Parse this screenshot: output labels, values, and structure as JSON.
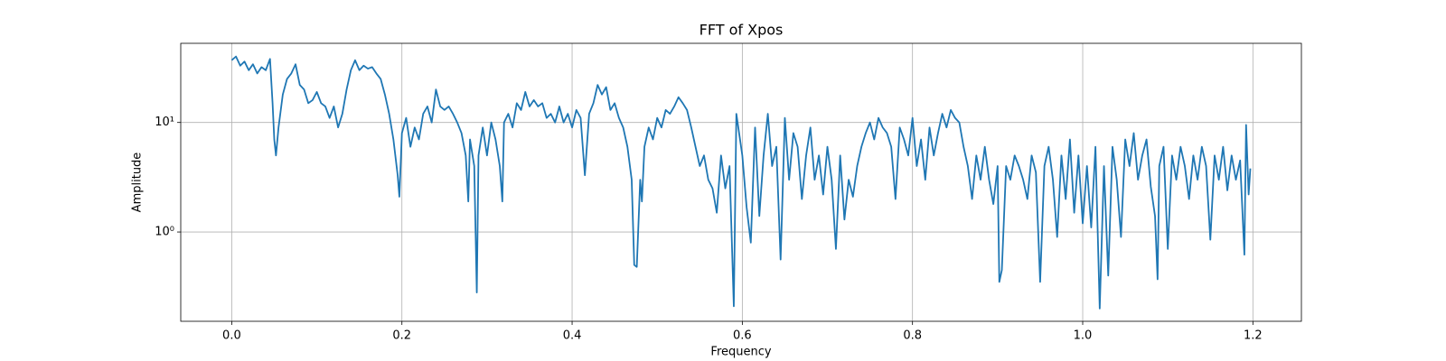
{
  "chart_data": {
    "type": "line",
    "title": "FFT of Xpos",
    "x_label": "Frequency",
    "y_label": "Amplitude",
    "color": "#1f77b4",
    "log_y": true,
    "grid": true,
    "xlim": [
      -0.0599,
      1.257
    ],
    "ylim": [
      0.153,
      52.8
    ],
    "xticks": [
      {
        "value": 0,
        "label": "0.0"
      },
      0.2,
      0.4,
      0.6,
      0.8,
      {
        "value": 1,
        "label": "1.0"
      },
      1.2
    ],
    "yticks": [
      {
        "value": 1,
        "label": "10⁰"
      },
      {
        "value": 10,
        "label": "10¹"
      }
    ],
    "x": [
      0,
      0.005,
      0.01,
      0.015,
      0.02,
      0.025,
      0.03,
      0.035,
      0.04,
      0.045,
      0.048,
      0.05,
      0.052,
      0.055,
      0.06,
      0.065,
      0.07,
      0.075,
      0.08,
      0.085,
      0.09,
      0.095,
      0.1,
      0.105,
      0.11,
      0.115,
      0.12,
      0.125,
      0.13,
      0.135,
      0.14,
      0.145,
      0.15,
      0.155,
      0.16,
      0.165,
      0.17,
      0.175,
      0.18,
      0.185,
      0.19,
      0.195,
      0.197,
      0.2,
      0.205,
      0.21,
      0.215,
      0.22,
      0.225,
      0.23,
      0.235,
      0.24,
      0.245,
      0.25,
      0.255,
      0.26,
      0.265,
      0.27,
      0.275,
      0.278,
      0.28,
      0.285,
      0.288,
      0.29,
      0.295,
      0.3,
      0.305,
      0.31,
      0.315,
      0.318,
      0.32,
      0.325,
      0.33,
      0.335,
      0.34,
      0.345,
      0.35,
      0.355,
      0.36,
      0.365,
      0.37,
      0.375,
      0.38,
      0.385,
      0.39,
      0.395,
      0.4,
      0.405,
      0.41,
      0.415,
      0.42,
      0.425,
      0.43,
      0.435,
      0.44,
      0.445,
      0.45,
      0.455,
      0.46,
      0.465,
      0.47,
      0.473,
      0.476,
      0.48,
      0.482,
      0.485,
      0.49,
      0.495,
      0.5,
      0.505,
      0.51,
      0.515,
      0.52,
      0.525,
      0.53,
      0.535,
      0.54,
      0.545,
      0.55,
      0.555,
      0.56,
      0.565,
      0.57,
      0.575,
      0.58,
      0.585,
      0.59,
      0.593,
      0.6,
      0.605,
      0.61,
      0.615,
      0.62,
      0.625,
      0.63,
      0.635,
      0.64,
      0.645,
      0.65,
      0.655,
      0.66,
      0.665,
      0.67,
      0.675,
      0.68,
      0.685,
      0.69,
      0.695,
      0.7,
      0.705,
      0.71,
      0.715,
      0.72,
      0.725,
      0.73,
      0.735,
      0.74,
      0.745,
      0.75,
      0.755,
      0.76,
      0.765,
      0.77,
      0.775,
      0.78,
      0.785,
      0.79,
      0.795,
      0.8,
      0.805,
      0.81,
      0.815,
      0.82,
      0.825,
      0.83,
      0.835,
      0.84,
      0.845,
      0.85,
      0.855,
      0.86,
      0.865,
      0.87,
      0.875,
      0.88,
      0.885,
      0.89,
      0.895,
      0.9,
      0.902,
      0.905,
      0.91,
      0.915,
      0.92,
      0.925,
      0.93,
      0.935,
      0.94,
      0.945,
      0.95,
      0.955,
      0.96,
      0.965,
      0.97,
      0.975,
      0.98,
      0.985,
      0.99,
      0.995,
      1.0,
      1.005,
      1.01,
      1.015,
      1.02,
      1.025,
      1.03,
      1.035,
      1.04,
      1.045,
      1.05,
      1.055,
      1.06,
      1.065,
      1.07,
      1.075,
      1.08,
      1.085,
      1.088,
      1.09,
      1.095,
      1.1,
      1.105,
      1.11,
      1.115,
      1.12,
      1.125,
      1.13,
      1.135,
      1.14,
      1.145,
      1.15,
      1.155,
      1.16,
      1.165,
      1.17,
      1.175,
      1.18,
      1.185,
      1.19,
      1.192,
      1.195,
      1.197
    ],
    "values": [
      37,
      40,
      33,
      36,
      30,
      34,
      28,
      32,
      30,
      38,
      15,
      7,
      5,
      9,
      18,
      25,
      28,
      34,
      22,
      20,
      15,
      16,
      19,
      15,
      14,
      11,
      14,
      9,
      12,
      20,
      30,
      37,
      30,
      33,
      31,
      32,
      28,
      25,
      18,
      12,
      7,
      3.3,
      2.1,
      8,
      11,
      6,
      9,
      7,
      12,
      14,
      10,
      20,
      14,
      13,
      14,
      12,
      10,
      8,
      5,
      1.9,
      7,
      4,
      0.28,
      5,
      9,
      5,
      10,
      7,
      4,
      1.9,
      10,
      12,
      9,
      15,
      13,
      19,
      14,
      16,
      14,
      15,
      11,
      12,
      10,
      14,
      10,
      12,
      9,
      13,
      11,
      3.3,
      12,
      15,
      22,
      18,
      21,
      13,
      15,
      11,
      9,
      6,
      3,
      0.5,
      0.48,
      3,
      1.9,
      6,
      9,
      7,
      11,
      9,
      13,
      12,
      14,
      17,
      15,
      13,
      9,
      6,
      4,
      5,
      3,
      2.5,
      1.5,
      5,
      2.5,
      4,
      0.21,
      12,
      5,
      1.7,
      0.8,
      9,
      1.4,
      5,
      12,
      4,
      6,
      0.56,
      11,
      3,
      8,
      6,
      2,
      5,
      9,
      3,
      5,
      2.2,
      6,
      3,
      0.7,
      5,
      1.3,
      3,
      2.1,
      4,
      6,
      8,
      10,
      7,
      11,
      9,
      8,
      6,
      2,
      9,
      7,
      5,
      11,
      4,
      7,
      3,
      9,
      5,
      8,
      12,
      9,
      13,
      11,
      10,
      6,
      4,
      2,
      5,
      3,
      6,
      3,
      1.8,
      4,
      0.35,
      0.45,
      4,
      3,
      5,
      4,
      3,
      2,
      5,
      3.5,
      0.35,
      4,
      6,
      3,
      0.9,
      5,
      2,
      7,
      1.5,
      5,
      1.2,
      4,
      1.1,
      6,
      0.2,
      4,
      0.4,
      6,
      3,
      0.9,
      7,
      4,
      8,
      3,
      5,
      7,
      2.6,
      1.4,
      0.37,
      4,
      6,
      0.7,
      5,
      3,
      6,
      4,
      2,
      5,
      3,
      6,
      4,
      0.85,
      5,
      3,
      6,
      2.4,
      5,
      3,
      4.5,
      0.62,
      9.5,
      2.2,
      3.8
    ]
  }
}
